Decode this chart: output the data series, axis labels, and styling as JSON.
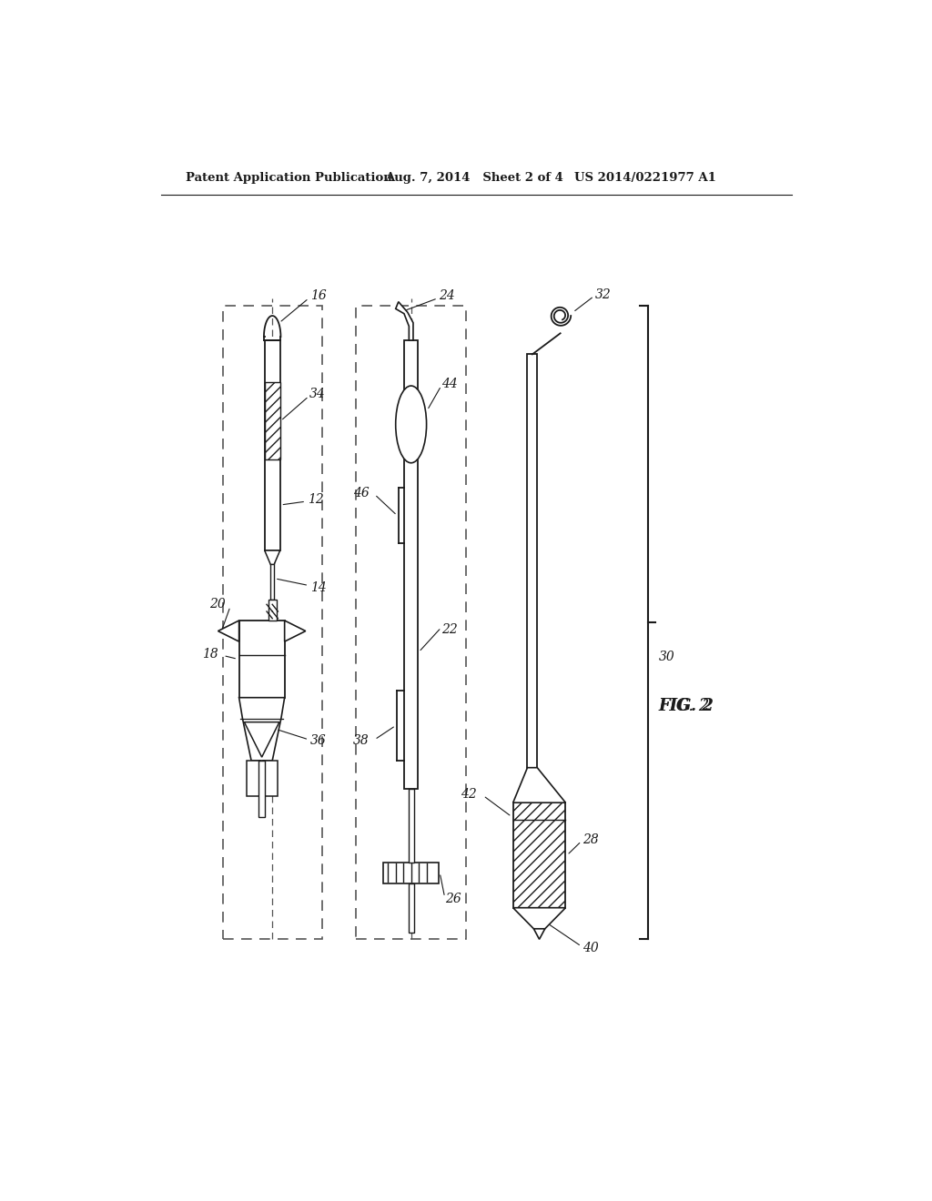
{
  "bg_color": "#ffffff",
  "header_left": "Patent Application Publication",
  "header_mid": "Aug. 7, 2014   Sheet 2 of 4",
  "header_right": "US 2014/0221977 A1",
  "fig_label": "FIG. 2",
  "line_color": "#1a1a1a",
  "dash_color": "#555555"
}
